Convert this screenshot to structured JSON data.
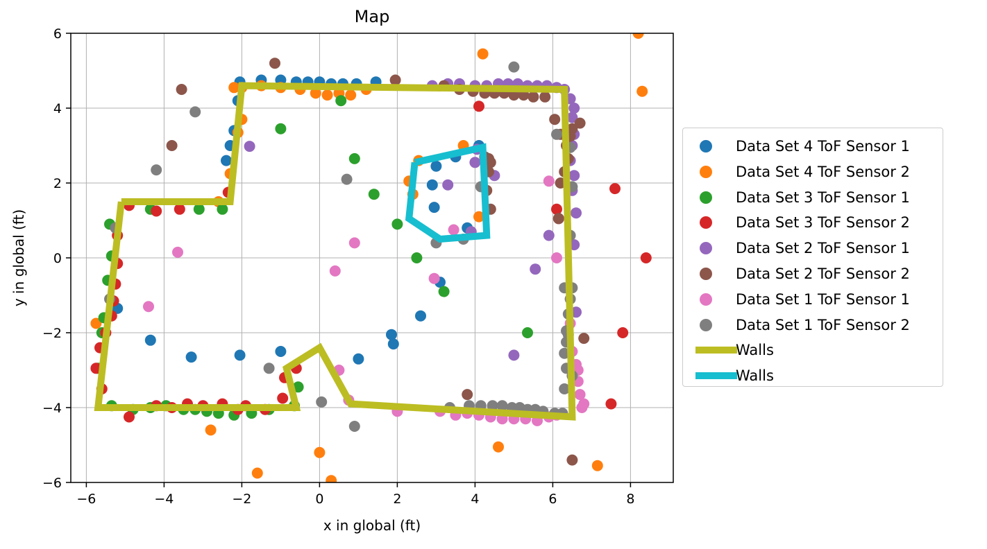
{
  "chart_data": {
    "type": "scatter",
    "title": "Map",
    "xlabel": "x in global (ft)",
    "ylabel": "y in global (ft)",
    "xlim": [
      -6.4,
      9.1
    ],
    "ylim": [
      -6,
      6
    ],
    "xticks": [
      -6,
      -4,
      -2,
      0,
      2,
      4,
      6,
      8
    ],
    "yticks": [
      -6,
      -4,
      -2,
      0,
      2,
      4,
      6
    ],
    "xtick_labels": [
      "−6",
      "−4",
      "−2",
      "0",
      "2",
      "4",
      "6",
      "8"
    ],
    "ytick_labels": [
      "−6",
      "−4",
      "−2",
      "0",
      "2",
      "4",
      "6"
    ],
    "grid": true,
    "legend_position": "right",
    "series": [
      {
        "name": "Data Set 4 ToF Sensor 1",
        "color": "#1f77b4",
        "kind": "scatter",
        "x": [
          -2.05,
          -1.5,
          -1.0,
          -0.6,
          -0.3,
          0.0,
          0.3,
          0.6,
          0.95,
          1.45,
          -2.1,
          -2.2,
          -2.3,
          -2.4,
          -5.2,
          -4.35,
          -3.3,
          -2.05,
          -1.0,
          1.0,
          1.85,
          1.9,
          2.6,
          3.1,
          2.9,
          2.95,
          3.0,
          4.1,
          3.8,
          3.5
        ],
        "y": [
          4.7,
          4.75,
          4.75,
          4.7,
          4.7,
          4.7,
          4.65,
          4.65,
          4.65,
          4.7,
          4.2,
          3.4,
          3.0,
          2.6,
          -1.35,
          -2.2,
          -2.65,
          -2.6,
          -2.5,
          -2.7,
          -2.05,
          -2.3,
          -1.55,
          -0.65,
          1.95,
          1.35,
          2.45,
          3.0,
          0.8,
          2.7
        ]
      },
      {
        "name": "Data Set 4 ToF Sensor 2",
        "color": "#ff7f0e",
        "kind": "scatter",
        "x": [
          -2.2,
          -2.0,
          -1.5,
          -1.0,
          -0.5,
          -0.1,
          0.2,
          0.5,
          0.8,
          1.2,
          -2.0,
          -2.1,
          -2.3,
          -2.6,
          -5.75,
          -2.8,
          -1.6,
          0.0,
          0.3,
          4.2,
          8.2,
          8.3,
          4.6,
          7.15,
          3.7,
          2.55,
          2.3,
          4.3,
          4.1,
          2.4
        ],
        "y": [
          4.55,
          4.55,
          4.6,
          4.55,
          4.5,
          4.4,
          4.35,
          4.4,
          4.35,
          4.5,
          3.7,
          3.35,
          2.25,
          1.5,
          -1.75,
          -4.6,
          -5.75,
          -5.2,
          -5.95,
          5.45,
          6.0,
          4.45,
          -5.05,
          -5.55,
          3.0,
          2.6,
          2.05,
          1.8,
          1.1,
          1.7
        ]
      },
      {
        "name": "Data Set 3 ToF Sensor 1",
        "color": "#2ca02c",
        "kind": "scatter",
        "x": [
          -5.4,
          -5.35,
          -5.45,
          -5.55,
          -5.6,
          -5.7,
          -5.35,
          -4.8,
          -4.35,
          -3.95,
          -3.5,
          -3.2,
          -2.9,
          -2.6,
          -2.2,
          -1.75,
          -1.3,
          -0.65,
          -0.55,
          -3.1,
          -2.5,
          -1.0,
          0.9,
          1.4,
          2.0,
          2.5,
          3.2,
          5.35,
          0.55,
          -4.35
        ],
        "y": [
          0.9,
          0.05,
          -0.6,
          -1.6,
          -2.0,
          -2.95,
          -3.95,
          -4.05,
          -4.0,
          -3.95,
          -4.05,
          -4.05,
          -4.1,
          -4.15,
          -4.2,
          -4.15,
          -4.05,
          -3.95,
          -3.45,
          1.3,
          1.3,
          3.45,
          2.65,
          1.7,
          0.9,
          0.0,
          -0.9,
          -2.0,
          4.2,
          1.3
        ]
      },
      {
        "name": "Data Set 3 ToF Sensor 2",
        "color": "#d62728",
        "kind": "scatter",
        "x": [
          -5.2,
          -5.25,
          -5.3,
          -5.35,
          -5.5,
          -5.65,
          -5.75,
          -5.6,
          -4.9,
          -4.2,
          -3.8,
          -3.4,
          -3.0,
          -2.5,
          -2.1,
          -1.9,
          -1.4,
          -0.95,
          -0.9,
          -0.6,
          -4.9,
          -4.2,
          -3.6,
          -2.35,
          4.1,
          6.1,
          6.15,
          7.6,
          7.8,
          8.4,
          7.5,
          -5.2
        ],
        "y": [
          -0.15,
          -0.7,
          -1.15,
          -1.55,
          -2.0,
          -2.4,
          -2.95,
          -3.5,
          -4.25,
          -3.95,
          -4.0,
          -3.9,
          -3.95,
          -3.9,
          -4.05,
          -3.95,
          -4.05,
          -3.75,
          -3.2,
          -2.95,
          1.4,
          1.25,
          1.3,
          1.75,
          4.05,
          1.3,
          1.05,
          1.85,
          -2.0,
          0.0,
          -3.9,
          0.6
        ]
      },
      {
        "name": "Data Set 2 ToF Sensor 1",
        "color": "#9467bd",
        "kind": "scatter",
        "x": [
          2.9,
          3.3,
          3.6,
          4.0,
          4.3,
          4.6,
          4.85,
          5.1,
          5.35,
          5.6,
          5.85,
          6.1,
          6.3,
          6.45,
          6.5,
          6.55,
          6.5,
          6.45,
          6.55,
          6.5,
          6.6,
          6.55,
          4.0,
          3.9,
          3.3,
          4.05,
          -1.8,
          5.9,
          6.6,
          5.55,
          4.25,
          4.5,
          5.0,
          6.55
        ],
        "y": [
          4.6,
          4.65,
          4.65,
          4.6,
          4.6,
          4.65,
          4.65,
          4.65,
          4.6,
          4.6,
          4.6,
          4.55,
          4.5,
          4.25,
          3.75,
          3.3,
          3.0,
          2.6,
          2.2,
          1.8,
          1.2,
          0.35,
          2.55,
          0.7,
          1.95,
          2.9,
          2.98,
          0.6,
          -1.45,
          -0.3,
          2.6,
          2.2,
          -2.6,
          4.0
        ]
      },
      {
        "name": "Data Set 2 ToF Sensor 2",
        "color": "#8c564b",
        "kind": "scatter",
        "x": [
          1.95,
          3.2,
          3.6,
          3.95,
          4.25,
          4.5,
          4.75,
          5.0,
          5.25,
          5.5,
          5.8,
          6.05,
          6.2,
          6.35,
          6.4,
          6.3,
          6.2,
          6.15,
          6.45,
          6.7,
          4.25,
          4.4,
          4.35,
          4.3,
          4.4,
          4.35,
          -3.55,
          -3.8,
          -1.15,
          6.8,
          6.5,
          3.8,
          6.5
        ],
        "y": [
          4.75,
          4.6,
          4.5,
          4.45,
          4.4,
          4.4,
          4.4,
          4.35,
          4.35,
          4.3,
          4.3,
          3.7,
          3.3,
          3.0,
          2.65,
          2.3,
          2.0,
          1.05,
          3.25,
          3.6,
          2.7,
          2.55,
          2.3,
          1.8,
          1.3,
          2.65,
          4.5,
          3.0,
          5.2,
          -2.15,
          -5.4,
          -3.65,
          3.45
        ]
      },
      {
        "name": "Data Set 1 ToF Sensor 1",
        "color": "#e377c2",
        "kind": "scatter",
        "x": [
          -4.4,
          -3.65,
          0.4,
          0.9,
          2.0,
          2.95,
          3.45,
          0.5,
          0.75,
          2.0,
          3.1,
          3.5,
          3.8,
          4.1,
          4.4,
          4.7,
          5.0,
          5.3,
          5.6,
          5.9,
          6.1,
          6.45,
          6.5,
          6.6,
          6.65,
          6.65,
          6.7,
          6.75,
          6.8,
          5.9,
          6.1
        ],
        "y": [
          -1.3,
          0.15,
          -0.35,
          0.4,
          -4.05,
          -0.55,
          0.75,
          -3.0,
          -3.8,
          -4.1,
          -4.1,
          -4.2,
          -4.15,
          -4.2,
          -4.25,
          -4.3,
          -4.3,
          -4.3,
          -4.35,
          -4.25,
          -4.2,
          -1.75,
          -2.5,
          -2.85,
          -3.0,
          -3.3,
          -3.65,
          -4.0,
          -3.9,
          2.05,
          0.0
        ]
      },
      {
        "name": "Data Set 1 ToF Sensor 2",
        "color": "#7f7f7f",
        "kind": "scatter",
        "x": [
          -5.4,
          -5.25,
          -4.2,
          -3.2,
          0.7,
          0.05,
          0.9,
          -1.3,
          5.0,
          3.35,
          3.85,
          4.15,
          4.45,
          4.7,
          4.95,
          5.15,
          5.35,
          5.55,
          5.75,
          6.05,
          6.25,
          6.3,
          6.35,
          6.3,
          6.35,
          6.4,
          6.4,
          6.45,
          6.5,
          6.45,
          6.5,
          6.45,
          6.5,
          6.1,
          6.35,
          6.3,
          3.0,
          3.7,
          4.15
        ],
        "y": [
          -1.1,
          0.8,
          2.35,
          3.9,
          2.1,
          -3.85,
          -4.5,
          -2.95,
          5.1,
          -4.0,
          -3.95,
          -3.95,
          -3.95,
          -3.95,
          -4.0,
          -4.0,
          -4.05,
          -4.05,
          -4.1,
          -4.15,
          -4.15,
          -3.5,
          -2.95,
          -2.55,
          -2.25,
          -2.05,
          -1.5,
          -1.1,
          -0.8,
          0.6,
          1.9,
          2.95,
          -3.15,
          3.3,
          -1.95,
          -0.8,
          0.4,
          0.5,
          1.9
        ]
      },
      {
        "name": "Walls",
        "color": "#bcbd22",
        "kind": "line",
        "linewidth": 10,
        "x": [
          -5.1,
          -2.3,
          -2.0,
          6.3,
          6.5,
          0.8,
          0.0,
          -0.85,
          -0.6,
          -5.7,
          -5.1
        ],
        "y": [
          1.5,
          1.5,
          4.6,
          4.5,
          -4.25,
          -3.9,
          -2.4,
          -2.95,
          -4.0,
          -4.0,
          1.5
        ]
      },
      {
        "name": "Walls",
        "color": "#17becf",
        "kind": "line",
        "linewidth": 10,
        "x": [
          2.45,
          4.2,
          4.3,
          3.1,
          2.3,
          2.45
        ],
        "y": [
          2.55,
          2.95,
          0.6,
          0.5,
          1.05,
          2.55
        ]
      }
    ]
  }
}
